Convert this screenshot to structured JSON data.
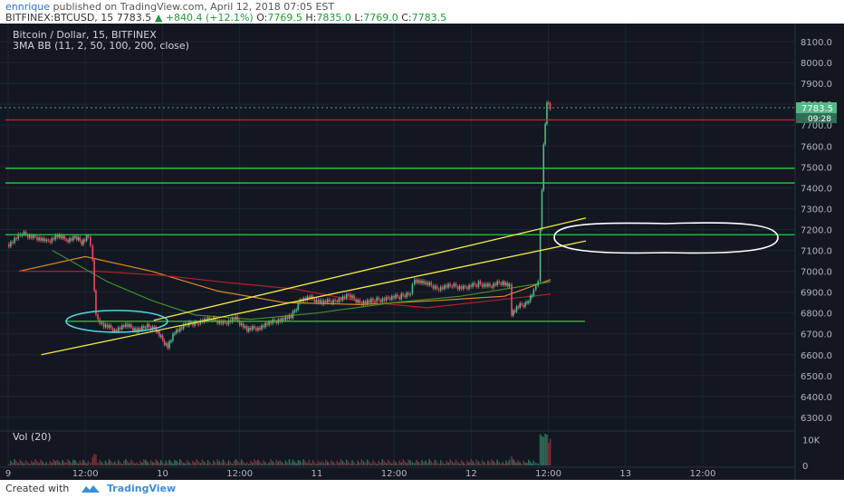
{
  "header": {
    "user": "ennrique",
    "published_text": "published on TradingView.com, April 12, 2018 07:05 EST",
    "symbol": "BITFINEX:BTCUSD, 15",
    "last": "7783.5",
    "change": "▲ +840.4 (+12.1%)",
    "o_label": "O:",
    "o": "7769.5",
    "h_label": "H:",
    "h": "7835.0",
    "l_label": "L:",
    "l": "7769.0",
    "c_label": "C:",
    "c": "7783.5"
  },
  "chart_labels": {
    "title": "Bitcoin / Dollar, 15, BITFINEX",
    "indicator": "3MA BB (11, 2, 50, 100, 200, close)",
    "vol_label": "Vol (20)",
    "price_tag": "7783.5",
    "time_tag": "09:28"
  },
  "footer": {
    "created_with": "Created with",
    "brand": "TradingView"
  },
  "colors": {
    "background": "#131722",
    "grid": "#1f2433",
    "up": "#53b987",
    "down": "#eb4d5c",
    "green_level": "#2ecc40",
    "red_level": "#c0212f",
    "channel": "#f3e84a",
    "circle_cyan": "#4fd6e0",
    "circle_white": "#ffffff"
  },
  "chart_data": {
    "type": "candlestick",
    "title": "Bitcoin / Dollar, 15, BITFINEX",
    "ylim": [
      6250,
      8200
    ],
    "y_ticks": [
      "8100.0",
      "8000.0",
      "7900.0",
      "7800.0",
      "7700.0",
      "7600.0",
      "7500.0",
      "7400.0",
      "7300.0",
      "7200.0",
      "7100.0",
      "7000.0",
      "6900.0",
      "6800.0",
      "6700.0",
      "6600.0",
      "6500.0",
      "6400.0",
      "6300.0"
    ],
    "x_ticks": [
      "9",
      "12:00",
      "10",
      "12:00",
      "11",
      "12:00",
      "12",
      "12:00",
      "13",
      "12:00"
    ],
    "horizontal_levels": [
      {
        "price": 7725,
        "color": "red"
      },
      {
        "price": 7493,
        "color": "green"
      },
      {
        "price": 7423,
        "color": "green"
      },
      {
        "price": 7175,
        "color": "green"
      },
      {
        "price": 6760,
        "color": "green"
      }
    ],
    "channel": {
      "upper": [
        [
          6.6,
          6765
        ],
        [
          26.2,
          7255
        ]
      ],
      "lower": [
        [
          1.5,
          6600
        ],
        [
          26.2,
          7145
        ]
      ]
    },
    "close": [
      {
        "t": 0.0,
        "price": 7130
      },
      {
        "t": 0.6,
        "price": 7180
      },
      {
        "t": 1.2,
        "price": 7160
      },
      {
        "t": 1.7,
        "price": 7140
      },
      {
        "t": 2.2,
        "price": 7170
      },
      {
        "t": 2.6,
        "price": 7150
      },
      {
        "t": 3.0,
        "price": 7160
      },
      {
        "t": 3.3,
        "price": 7140
      },
      {
        "t": 3.6,
        "price": 7170
      },
      {
        "t": 3.8,
        "price": 7050
      },
      {
        "t": 3.95,
        "price": 6780
      },
      {
        "t": 4.3,
        "price": 6740
      },
      {
        "t": 4.8,
        "price": 6720
      },
      {
        "t": 5.3,
        "price": 6740
      },
      {
        "t": 5.8,
        "price": 6720
      },
      {
        "t": 6.2,
        "price": 6735
      },
      {
        "t": 6.6,
        "price": 6730
      },
      {
        "t": 6.9,
        "price": 6680
      },
      {
        "t": 7.2,
        "price": 6640
      },
      {
        "t": 7.6,
        "price": 6720
      },
      {
        "t": 8.0,
        "price": 6740
      },
      {
        "t": 8.6,
        "price": 6760
      },
      {
        "t": 9.2,
        "price": 6770
      },
      {
        "t": 9.8,
        "price": 6750
      },
      {
        "t": 10.3,
        "price": 6770
      },
      {
        "t": 10.8,
        "price": 6720
      },
      {
        "t": 11.3,
        "price": 6730
      },
      {
        "t": 11.8,
        "price": 6750
      },
      {
        "t": 12.3,
        "price": 6770
      },
      {
        "t": 12.8,
        "price": 6780
      },
      {
        "t": 13.2,
        "price": 6860
      },
      {
        "t": 13.7,
        "price": 6870
      },
      {
        "t": 14.2,
        "price": 6850
      },
      {
        "t": 14.8,
        "price": 6860
      },
      {
        "t": 15.4,
        "price": 6880
      },
      {
        "t": 16.0,
        "price": 6850
      },
      {
        "t": 16.6,
        "price": 6860
      },
      {
        "t": 17.2,
        "price": 6870
      },
      {
        "t": 17.8,
        "price": 6880
      },
      {
        "t": 18.2,
        "price": 6900
      },
      {
        "t": 18.4,
        "price": 6960
      },
      {
        "t": 18.9,
        "price": 6940
      },
      {
        "t": 19.5,
        "price": 6920
      },
      {
        "t": 20.1,
        "price": 6930
      },
      {
        "t": 20.7,
        "price": 6920
      },
      {
        "t": 21.3,
        "price": 6940
      },
      {
        "t": 21.9,
        "price": 6930
      },
      {
        "t": 22.4,
        "price": 6950
      },
      {
        "t": 22.7,
        "price": 6930
      },
      {
        "t": 22.8,
        "price": 6800
      },
      {
        "t": 23.1,
        "price": 6830
      },
      {
        "t": 23.5,
        "price": 6850
      },
      {
        "t": 23.8,
        "price": 6900
      },
      {
        "t": 24.0,
        "price": 6960
      },
      {
        "t": 24.1,
        "price": 7200
      },
      {
        "t": 24.25,
        "price": 7600
      },
      {
        "t": 24.4,
        "price": 7820
      },
      {
        "t": 24.55,
        "price": 7780
      },
      {
        "t": 24.65,
        "price": 7783.5
      }
    ],
    "moving_averages": [
      {
        "color": "orange",
        "points": [
          [
            0.5,
            7000
          ],
          [
            3.5,
            7070
          ],
          [
            6.5,
            7000
          ],
          [
            9.5,
            6905
          ],
          [
            12.5,
            6850
          ],
          [
            16.0,
            6840
          ],
          [
            19.5,
            6860
          ],
          [
            22.5,
            6880
          ],
          [
            24.6,
            6960
          ]
        ]
      },
      {
        "color": "red",
        "points": [
          [
            0.5,
            7000
          ],
          [
            4.0,
            7000
          ],
          [
            7.0,
            6980
          ],
          [
            10.0,
            6945
          ],
          [
            13.0,
            6915
          ],
          [
            16.0,
            6855
          ],
          [
            19.0,
            6825
          ],
          [
            22.0,
            6860
          ],
          [
            24.6,
            6890
          ]
        ]
      },
      {
        "color": "green",
        "points": [
          [
            2.0,
            7100
          ],
          [
            4.5,
            6950
          ],
          [
            6.5,
            6860
          ],
          [
            8.5,
            6790
          ],
          [
            11.0,
            6770
          ],
          [
            14.0,
            6800
          ],
          [
            17.5,
            6850
          ],
          [
            20.5,
            6880
          ],
          [
            24.6,
            6950
          ]
        ]
      }
    ],
    "volume": {
      "label": "Vol (20)",
      "y_ticks": [
        "10K",
        "0"
      ],
      "ylim": [
        0,
        12000
      ]
    }
  }
}
